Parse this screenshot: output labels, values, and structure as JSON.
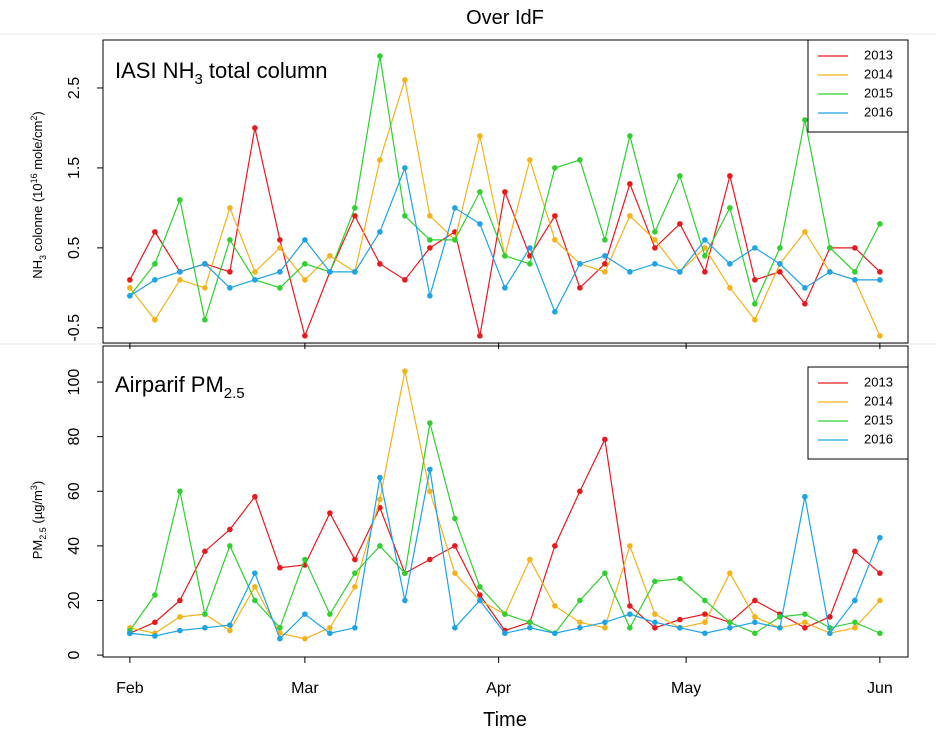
{
  "chart_data": [
    {
      "type": "line",
      "title": "Over IdF",
      "annotation": [
        "IASI NH",
        "3",
        " total column"
      ],
      "ylabel": [
        "NH",
        "3",
        " colonne (10",
        "16",
        " mole/cm",
        "2",
        ")"
      ],
      "x": [
        0,
        4,
        8,
        12,
        16,
        20,
        24,
        28,
        32,
        36,
        40,
        44,
        48,
        52,
        56,
        60,
        64,
        68,
        72,
        76,
        80,
        84,
        88,
        92,
        96,
        100,
        104,
        108,
        112,
        116,
        120
      ],
      "xlim": [
        -4.3,
        124.5
      ],
      "xticks": [
        0,
        28,
        59,
        89,
        120
      ],
      "ylim": [
        -0.69,
        3.1
      ],
      "yticks": [
        -0.5,
        0.5,
        1.5,
        2.5
      ],
      "legend": "top-right",
      "series": [
        {
          "name": "2013",
          "color": "#e8191c",
          "values": [
            0.1,
            0.7,
            0.2,
            0.3,
            0.2,
            2.0,
            0.6,
            -0.6,
            0.2,
            0.9,
            0.3,
            0.1,
            0.5,
            0.7,
            -0.6,
            1.2,
            0.4,
            0.9,
            0.0,
            0.3,
            1.3,
            0.5,
            0.8,
            0.2,
            1.4,
            0.1,
            0.2,
            -0.2,
            0.5,
            0.5,
            0.2
          ]
        },
        {
          "name": "2014",
          "color": "#f5b21a",
          "values": [
            0.0,
            -0.4,
            0.1,
            0.0,
            1.0,
            0.2,
            0.5,
            0.1,
            0.4,
            0.2,
            1.6,
            2.6,
            0.9,
            0.6,
            1.9,
            0.4,
            1.6,
            0.6,
            0.3,
            0.2,
            0.9,
            0.6,
            0.2,
            0.5,
            0.0,
            -0.4,
            0.3,
            0.7,
            0.2,
            0.1,
            -0.6
          ]
        },
        {
          "name": "2015",
          "color": "#2fd02f",
          "values": [
            -0.1,
            0.3,
            1.1,
            -0.4,
            0.6,
            0.1,
            0.0,
            0.3,
            0.2,
            1.0,
            2.9,
            0.9,
            0.6,
            0.6,
            1.2,
            0.4,
            0.3,
            1.5,
            1.6,
            0.6,
            1.9,
            0.7,
            1.4,
            0.4,
            1.0,
            -0.2,
            0.5,
            2.1,
            0.5,
            0.2,
            0.8
          ]
        },
        {
          "name": "2016",
          "color": "#1ca3e8",
          "values": [
            -0.1,
            0.1,
            0.2,
            0.3,
            0.0,
            0.1,
            0.2,
            0.6,
            0.2,
            0.2,
            0.7,
            1.5,
            -0.1,
            1.0,
            0.8,
            0.0,
            0.5,
            -0.3,
            0.3,
            0.4,
            0.2,
            0.3,
            0.2,
            0.6,
            0.3,
            0.5,
            0.3,
            0.0,
            0.2,
            0.1,
            0.1
          ]
        }
      ]
    },
    {
      "type": "line",
      "xlabel": "Time",
      "annotation": [
        "Airparif PM",
        "2.5",
        ""
      ],
      "ylabel": [
        "PM",
        "2.5",
        " (µg/m",
        "3",
        ")"
      ],
      "x": [
        0,
        4,
        8,
        12,
        16,
        20,
        24,
        28,
        32,
        36,
        40,
        44,
        48,
        52,
        56,
        60,
        64,
        68,
        72,
        76,
        80,
        84,
        88,
        92,
        96,
        100,
        104,
        108,
        112,
        116,
        120
      ],
      "xlim": [
        -4.3,
        124.5
      ],
      "xticks": [
        {
          "value": 0,
          "label": "Feb"
        },
        {
          "value": 28,
          "label": "Mar"
        },
        {
          "value": 59,
          "label": "Apr"
        },
        {
          "value": 89,
          "label": "May"
        },
        {
          "value": 120,
          "label": "Jun"
        }
      ],
      "ylim": [
        -0.7,
        113.2
      ],
      "yticks": [
        0,
        20,
        40,
        60,
        80,
        100
      ],
      "legend": "top-right",
      "series": [
        {
          "name": "2013",
          "color": "#e8191c",
          "values": [
            8,
            12,
            20,
            38,
            46,
            58,
            32,
            33,
            52,
            35,
            54,
            30,
            35,
            40,
            22,
            9,
            12,
            40,
            60,
            79,
            18,
            10,
            13,
            15,
            12,
            20,
            15,
            10,
            14,
            38,
            30
          ]
        },
        {
          "name": "2014",
          "color": "#f5b21a",
          "values": [
            10,
            8,
            14,
            15,
            9,
            25,
            8,
            6,
            10,
            25,
            57,
            104,
            60,
            30,
            20,
            15,
            35,
            18,
            12,
            10,
            40,
            15,
            10,
            12,
            30,
            14,
            10,
            12,
            8,
            10,
            20
          ]
        },
        {
          "name": "2015",
          "color": "#2fd02f",
          "values": [
            9,
            22,
            60,
            15,
            40,
            20,
            10,
            35,
            15,
            30,
            40,
            30,
            85,
            50,
            25,
            15,
            12,
            8,
            20,
            30,
            10,
            27,
            28,
            20,
            12,
            8,
            14,
            15,
            10,
            12,
            8
          ]
        },
        {
          "name": "2016",
          "color": "#1ca3e8",
          "values": [
            8,
            7,
            9,
            10,
            11,
            30,
            6,
            15,
            8,
            10,
            65,
            20,
            68,
            10,
            20,
            8,
            10,
            8,
            10,
            12,
            15,
            12,
            10,
            8,
            10,
            12,
            10,
            58,
            8,
            20,
            43
          ]
        }
      ]
    }
  ]
}
